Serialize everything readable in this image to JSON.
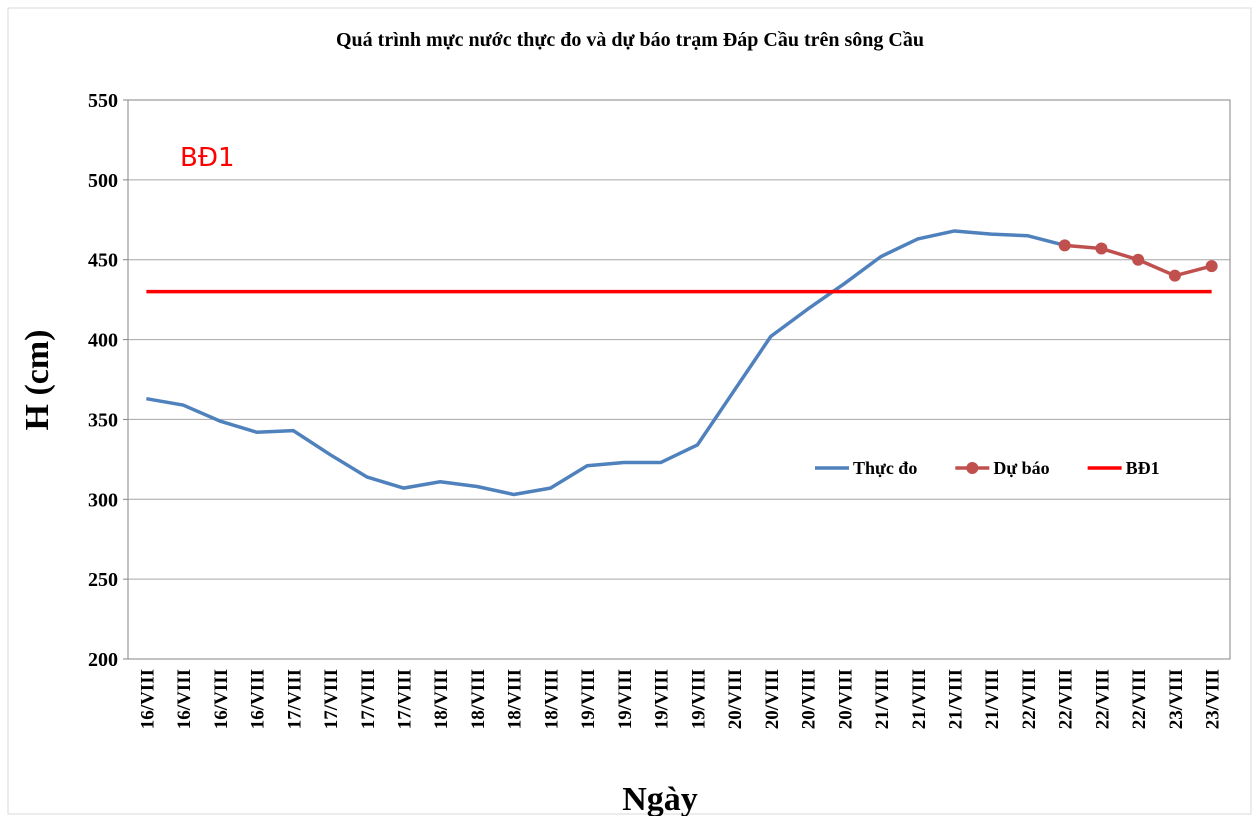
{
  "chart_data": {
    "type": "line",
    "title": "Quá trình mực nước thực đo và dự báo trạm Đáp Cầu trên sông Cầu",
    "x_label": "Ngày",
    "y_label": "H (cm)",
    "annotation": "BĐ1",
    "categories": [
      "16/VIII",
      "16/VIII",
      "16/VIII",
      "16/VIII",
      "17/VIII",
      "17/VIII",
      "17/VIII",
      "17/VIII",
      "18/VIII",
      "18/VIII",
      "18/VIII",
      "18/VIII",
      "19/VIII",
      "19/VIII",
      "19/VIII",
      "19/VIII",
      "20/VIII",
      "20/VIII",
      "20/VIII",
      "20/VIII",
      "21/VIII",
      "21/VIII",
      "21/VIII",
      "21/VIII",
      "22/VIII",
      "22/VIII",
      "22/VIII",
      "22/VIII",
      "23/VIII",
      "23/VIII"
    ],
    "series": [
      {
        "name": "Thực đo",
        "color": "#4f81bd",
        "markers": false,
        "values": [
          363,
          359,
          349,
          342,
          343,
          328,
          314,
          307,
          311,
          308,
          303,
          307,
          321,
          323,
          323,
          334,
          368,
          402,
          419,
          435,
          452,
          463,
          468,
          466,
          465,
          459,
          null,
          null,
          null,
          null
        ]
      },
      {
        "name": "Dự báo",
        "color": "#c0504d",
        "markers": true,
        "values": [
          null,
          null,
          null,
          null,
          null,
          null,
          null,
          null,
          null,
          null,
          null,
          null,
          null,
          null,
          null,
          null,
          null,
          null,
          null,
          null,
          null,
          null,
          null,
          null,
          null,
          459,
          457,
          450,
          440,
          446
        ]
      },
      {
        "name": "BĐ1",
        "color": "#ff0000",
        "markers": false,
        "values": [
          430,
          430,
          430,
          430,
          430,
          430,
          430,
          430,
          430,
          430,
          430,
          430,
          430,
          430,
          430,
          430,
          430,
          430,
          430,
          430,
          430,
          430,
          430,
          430,
          430,
          430,
          430,
          430,
          430,
          430
        ]
      }
    ],
    "ylim": [
      200,
      550
    ],
    "yticks": [
      200,
      250,
      300,
      350,
      400,
      450,
      500,
      550
    ],
    "grid": true,
    "legend": "right"
  }
}
